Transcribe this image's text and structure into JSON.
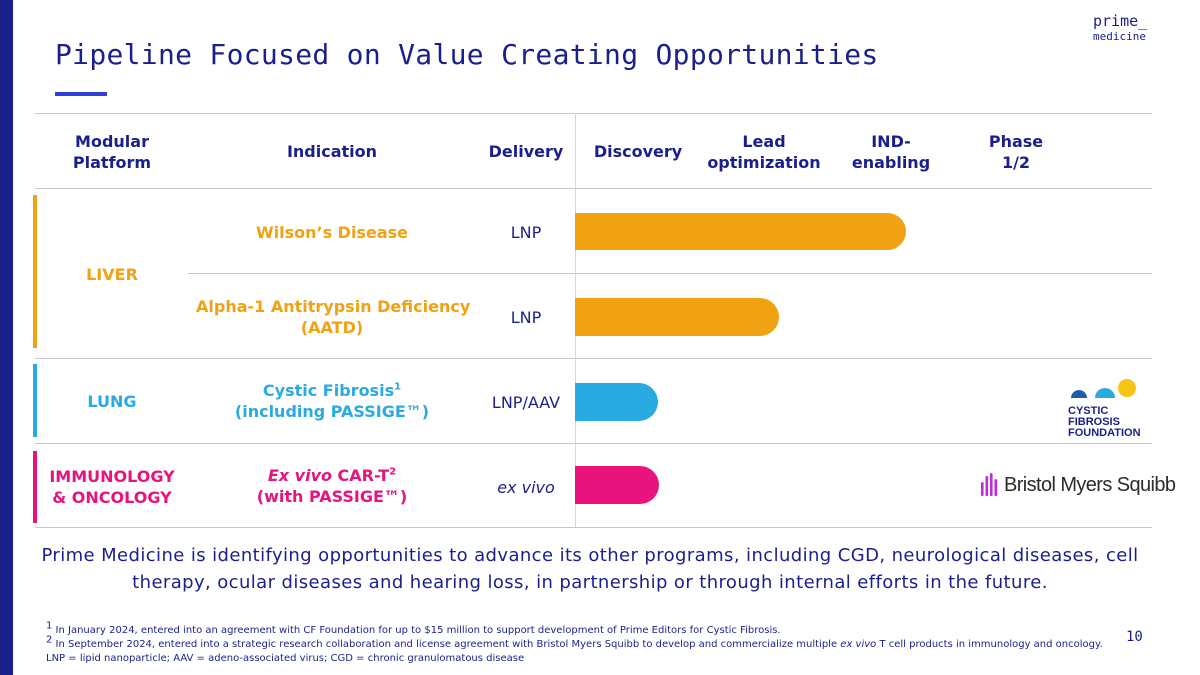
{
  "logo": {
    "line1": "prime_",
    "line2": "medicine"
  },
  "title": "Pipeline Focused on Value Creating Opportunities",
  "colors": {
    "navy": "#1a1f8c",
    "liver": "#f0a212",
    "lung": "#29aae1",
    "immuno": "#e8137d",
    "underline": "#2f3fd6"
  },
  "headers": {
    "platform": "Modular Platform",
    "indication": "Indication",
    "delivery": "Delivery",
    "discovery": "Discovery",
    "lead_opt": "Lead optimization",
    "ind": "IND- enabling",
    "phase": "Phase 1/2"
  },
  "stages": [
    "Discovery",
    "Lead optimization",
    "IND-enabling",
    "Phase 1/2"
  ],
  "platforms": {
    "liver": "LIVER",
    "lung": "LUNG",
    "immuno": "IMMUNOLOGY & ONCOLOGY"
  },
  "programs": [
    {
      "indication": "Wilson’s Disease",
      "delivery": "LNP",
      "progress_stages": 2.65
    },
    {
      "indication_line1": "Alpha-1 Antitrypsin Deficiency",
      "indication_line2": "(AATD)",
      "delivery": "LNP",
      "progress_stages": 1.63
    },
    {
      "indication_line1": "Cystic Fibrosis",
      "sup": "1",
      "indication_line2": "(including PASSIGE™)",
      "delivery": "LNP/AAV",
      "progress_stages": 0.66
    },
    {
      "indication_italic": "Ex vivo",
      "indication_rest": " CAR-T",
      "sup": "2",
      "indication_line2": "(with PASSIGE™)",
      "delivery": "ex vivo",
      "progress_stages": 0.67
    }
  ],
  "partners": {
    "cff_line1": "CYSTIC FIBROSIS",
    "cff_line2": "FOUNDATION",
    "bms": "Bristol Myers Squibb"
  },
  "summary": "Prime Medicine is identifying opportunities to advance its other programs, including CGD, neurological diseases, cell therapy, ocular diseases and hearing loss, in partnership or through internal efforts in the future.",
  "footnotes": {
    "f1_mark": "1",
    "f1": " In January 2024, entered into an agreement with CF Foundation for up to $15 million to support development of Prime Editors for Cystic Fibrosis.",
    "f2_mark": "2",
    "f2_pre": " In September 2024, entered into a strategic research collaboration and license agreement with Bristol Myers Squibb to develop and commercialize multiple ",
    "f2_italic": "ex vivo",
    "f2_post": " T cell products in immunology and oncology.",
    "f3": "LNP = lipid nanoparticle; AAV = adeno-associated virus; CGD = chronic granulomatous disease"
  },
  "page_number": "10"
}
